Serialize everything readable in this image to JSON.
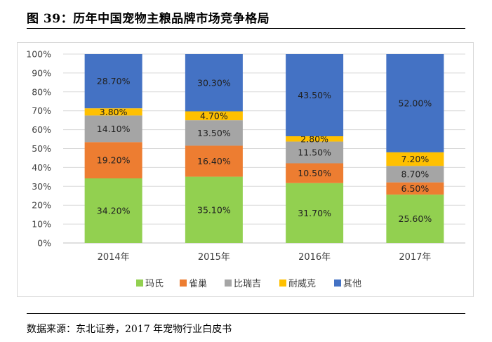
{
  "figure": {
    "title": "图 39：历年中国宠物主粮品牌市场竞争格局",
    "source": "数据来源：东北证券，2017 年宠物行业白皮书"
  },
  "chart_data": {
    "type": "bar",
    "stacked": true,
    "percent": true,
    "categories": [
      "2014年",
      "2015年",
      "2016年",
      "2017年"
    ],
    "series": [
      {
        "name": "玛氏",
        "color": "#92d050",
        "values": [
          34.2,
          35.1,
          31.7,
          25.6
        ]
      },
      {
        "name": "雀巢",
        "color": "#ed7d31",
        "values": [
          19.2,
          16.4,
          10.5,
          6.5
        ]
      },
      {
        "name": "比瑞吉",
        "color": "#a5a5a5",
        "values": [
          14.1,
          13.5,
          11.5,
          8.7
        ]
      },
      {
        "name": "耐威克",
        "color": "#ffc000",
        "values": [
          3.8,
          4.7,
          2.8,
          7.2
        ]
      },
      {
        "name": "其他",
        "color": "#4472c4",
        "values": [
          28.7,
          30.3,
          43.5,
          52.0
        ]
      }
    ],
    "ylim": [
      0,
      100
    ],
    "yticks": [
      "0%",
      "10%",
      "20%",
      "30%",
      "40%",
      "50%",
      "60%",
      "70%",
      "80%",
      "90%",
      "100%"
    ],
    "data_labels": [
      [
        "34.20%",
        "35.10%",
        "31.70%",
        "25.60%"
      ],
      [
        "19.20%",
        "16.40%",
        "10.50%",
        "6.50%"
      ],
      [
        "14.10%",
        "13.50%",
        "11.50%",
        "8.70%"
      ],
      [
        "3.80%",
        "4.70%",
        "2.80%",
        "7.20%"
      ],
      [
        "28.70%",
        "30.30%",
        "43.50%",
        "52.00%"
      ]
    ],
    "grid": true,
    "legend": "bottom"
  }
}
